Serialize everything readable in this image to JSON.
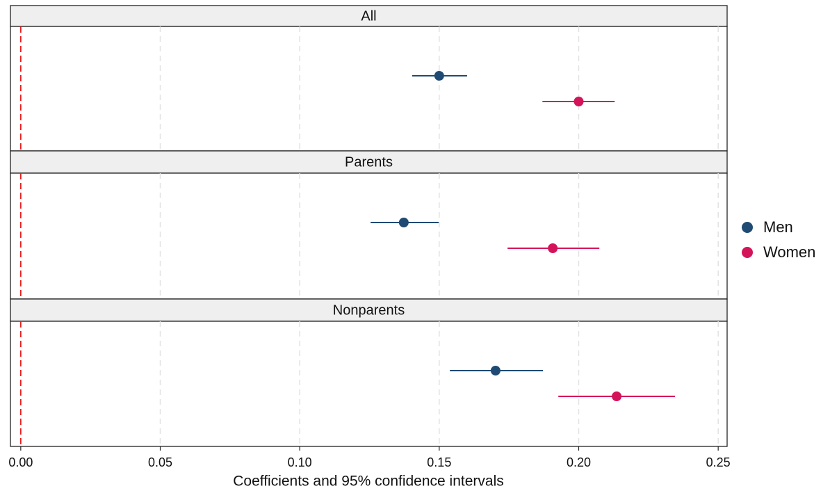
{
  "chart_data": {
    "type": "pointrange",
    "x_label": "Coefficients and 95% confidence intervals",
    "categories": [
      "All",
      "Parents",
      "Nonparents"
    ],
    "xlim": [
      -0.0037,
      0.2532
    ],
    "xticks": [
      {
        "value": 0,
        "label": "0.00"
      },
      {
        "value": 0.05,
        "label": "0.05"
      },
      {
        "value": 0.1,
        "label": "0.10"
      },
      {
        "value": 0.15,
        "label": "0.15"
      },
      {
        "value": 0.2,
        "label": "0.20"
      },
      {
        "value": 0.25,
        "label": "0.25"
      }
    ],
    "grid": true,
    "reference_line": 0,
    "reference_color": "#ee1c1c",
    "legend": "right",
    "series": [
      {
        "name": "Men",
        "color": "#1f4a73",
        "values": [
          0.15,
          0.1373,
          0.1702
        ],
        "lower": [
          0.1403,
          0.1254,
          0.1538
        ],
        "upper": [
          0.16,
          0.1498,
          0.1872
        ]
      },
      {
        "name": "Women",
        "color": "#d4145a",
        "values": [
          0.2,
          0.1907,
          0.2136
        ],
        "lower": [
          0.187,
          0.1745,
          0.1927
        ],
        "upper": [
          0.2129,
          0.2074,
          0.2345
        ]
      }
    ]
  }
}
